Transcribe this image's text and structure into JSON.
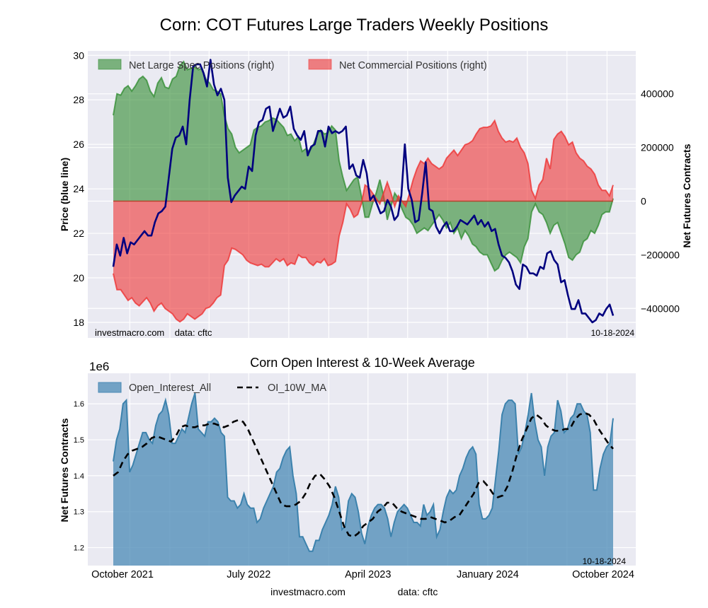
{
  "page": {
    "main_title": "Corn: COT Futures Large Traders Weekly Positions",
    "sub_title": "Corn Open Interest & 10-Week Average",
    "footer_site": "investmacro.com",
    "footer_source": "data: cftc",
    "date_stamp": "10-18-2024"
  },
  "chart_data": [
    {
      "type": "area",
      "title": "Corn: COT Futures Large Traders Weekly Positions",
      "ylabel_left": "Price (blue line)",
      "ylabel_right": "Net Futures Contracts",
      "ylim_left": [
        17.3,
        30.2
      ],
      "ylim_right": [
        -510000,
        560000
      ],
      "yticks_left": [
        "30",
        "28",
        "26",
        "24",
        "22",
        "20",
        "18"
      ],
      "yticks_right": [
        "400000",
        "200000",
        "0",
        "−200000",
        "−400000"
      ],
      "xticks": [
        "October 2021",
        "July 2022",
        "April 2023",
        "January 2024",
        "October 2024"
      ],
      "x_start": "2021-08-24",
      "x_end": "2024-10-15",
      "grid": true,
      "legend_position": "top-left",
      "watermark": "investmacro.com    data: cftc",
      "date_stamp": "10-18-2024",
      "colors": {
        "spec": "#2e8b2e",
        "comm": "#ee3333",
        "price": "#00007f"
      },
      "series": [
        {
          "name": "Net Large Spec Positions (right)",
          "anchor_values": [
            320000,
            400000,
            395000,
            420000,
            430000,
            410000,
            430000,
            455000,
            465000,
            450000,
            410000,
            390000,
            440000,
            460000,
            425000,
            420000,
            455000,
            465000,
            505000,
            520000,
            490000,
            495000,
            500000,
            490000,
            495000,
            455000,
            440000,
            415000,
            410000,
            400000,
            320000,
            270000,
            250000,
            200000,
            180000,
            190000,
            200000,
            210000,
            265000,
            275000,
            280000,
            295000,
            300000,
            310000,
            305000,
            290000,
            275000,
            245000,
            250000,
            225000,
            240000,
            185000,
            195000,
            185000,
            210000,
            245000,
            265000,
            250000,
            255000,
            280000,
            265000,
            150000,
            90000,
            40000,
            60000,
            80000,
            90000,
            20000,
            -60000,
            -60000,
            -10000,
            30000,
            80000,
            20000,
            -70000,
            -20000,
            30000,
            10000,
            -30000,
            -60000,
            -70000,
            -90000,
            -120000,
            -110000,
            -100000,
            -110000,
            -90000,
            -70000,
            -50000,
            -70000,
            -100000,
            -80000,
            -120000,
            -100000,
            -140000,
            -110000,
            -130000,
            -160000,
            -170000,
            -190000,
            -200000,
            -200000,
            -230000,
            -260000,
            -250000,
            -220000,
            -200000,
            -190000,
            -200000,
            -210000,
            -230000,
            -170000,
            -140000,
            -40000,
            -10000,
            -40000,
            -50000,
            -80000,
            -120000,
            -90000,
            -80000,
            -120000,
            -160000,
            -210000,
            -220000,
            -200000,
            -190000,
            -150000,
            -140000,
            -110000,
            -120000,
            -90000,
            -50000,
            -40000,
            -40000,
            10000
          ]
        },
        {
          "name": "Net Commercial Positions (right)",
          "anchor_values": [
            -270000,
            -330000,
            -330000,
            -350000,
            -370000,
            -360000,
            -380000,
            -390000,
            -375000,
            -360000,
            -380000,
            -410000,
            -390000,
            -380000,
            -400000,
            -410000,
            -420000,
            -440000,
            -450000,
            -440000,
            -420000,
            -430000,
            -440000,
            -430000,
            -420000,
            -400000,
            -395000,
            -380000,
            -360000,
            -350000,
            -240000,
            -220000,
            -175000,
            -180000,
            -190000,
            -200000,
            -220000,
            -230000,
            -235000,
            -240000,
            -235000,
            -245000,
            -245000,
            -230000,
            -215000,
            -225000,
            -215000,
            -240000,
            -230000,
            -235000,
            -200000,
            -210000,
            -210000,
            -230000,
            -240000,
            -225000,
            -230000,
            -215000,
            -240000,
            -235000,
            -225000,
            -130000,
            -80000,
            -10000,
            -30000,
            -60000,
            -50000,
            -10000,
            60000,
            50000,
            30000,
            10000,
            -10000,
            30000,
            70000,
            30000,
            -20000,
            20000,
            0,
            -20000,
            30000,
            80000,
            120000,
            150000,
            140000,
            160000,
            140000,
            130000,
            120000,
            130000,
            160000,
            175000,
            190000,
            170000,
            190000,
            210000,
            215000,
            225000,
            250000,
            270000,
            275000,
            275000,
            280000,
            300000,
            260000,
            235000,
            220000,
            225000,
            220000,
            235000,
            200000,
            180000,
            140000,
            40000,
            10000,
            60000,
            80000,
            160000,
            120000,
            230000,
            250000,
            260000,
            240000,
            210000,
            220000,
            180000,
            160000,
            150000,
            130000,
            120000,
            100000,
            60000,
            40000,
            40000,
            20000,
            60000
          ]
        },
        {
          "name": "Price (blue line)",
          "anchor_values": [
            20.5,
            21.5,
            21.0,
            21.8,
            21.1,
            21.6,
            21.5,
            21.7,
            21.9,
            22.1,
            21.9,
            21.9,
            22.5,
            22.9,
            23.0,
            23.2,
            24.5,
            25.8,
            26.3,
            26.4,
            26.8,
            26.0,
            28.0,
            29.5,
            29.6,
            29.6,
            29.2,
            28.6,
            29.8,
            28.7,
            28.2,
            28.5,
            28.0,
            24.5,
            23.4,
            23.7,
            23.9,
            24.1,
            24.0,
            25.0,
            24.8,
            26.4,
            27.0,
            27.1,
            27.6,
            27.7,
            26.6,
            27.1,
            27.6,
            27.2,
            27.3,
            27.7,
            26.7,
            26.4,
            26.2,
            26.6,
            25.5,
            25.9,
            26.0,
            26.6,
            26.6,
            25.9,
            26.8,
            26.5,
            26.6,
            26.5,
            26.6,
            26.8,
            24.9,
            25.1,
            24.6,
            24.5,
            25.3,
            24.7,
            23.5,
            23.7,
            23.3,
            22.9,
            23.0,
            23.5,
            23.2,
            22.6,
            22.8,
            23.7,
            26.0,
            24.0,
            23.5,
            22.5,
            22.6,
            23.8,
            25.2,
            23.1,
            23.0,
            22.3,
            22.0,
            22.3,
            22.5,
            22.1,
            22.1,
            22.3,
            22.6,
            22.5,
            22.4,
            22.6,
            22.8,
            22.4,
            22.6,
            22.3,
            22.5,
            22.1,
            22.2,
            21.5,
            21.0,
            20.9,
            20.7,
            20.3,
            19.7,
            19.5,
            20.6,
            20.5,
            20.2,
            20.2,
            20.1,
            20.5,
            20.4,
            21.1,
            21.2,
            20.8,
            20.6,
            19.8,
            19.9,
            19.2,
            18.6,
            18.6,
            19.0,
            18.4,
            18.4,
            18.2,
            18.0,
            18.1,
            18.4,
            18.3,
            18.6,
            18.8,
            18.3
          ]
        }
      ]
    },
    {
      "type": "area",
      "title": "Corn Open Interest & 10-Week Average",
      "ylabel": "Net Futures Contracts",
      "y_offset_label": "1e6",
      "ylim": [
        1.15,
        1.685
      ],
      "yticks": [
        "1.6",
        "1.5",
        "1.4",
        "1.3",
        "1.2"
      ],
      "xticks": [
        "October 2021",
        "July 2022",
        "April 2023",
        "January 2024",
        "October 2024"
      ],
      "x_start": "2021-08-24",
      "x_end": "2024-10-15",
      "grid": true,
      "legend_position": "top-left",
      "date_stamp": "10-18-2024",
      "colors": {
        "oi": "#4a8ab5",
        "ma": "#000000"
      },
      "series": [
        {
          "name": "Open_Interest_All",
          "anchor_values": [
            1.44,
            1.5,
            1.53,
            1.6,
            1.61,
            1.41,
            1.43,
            1.46,
            1.49,
            1.52,
            1.52,
            1.5,
            1.49,
            1.54,
            1.57,
            1.58,
            1.61,
            1.57,
            1.49,
            1.49,
            1.51,
            1.53,
            1.52,
            1.56,
            1.6,
            1.63,
            1.53,
            1.52,
            1.51,
            1.55,
            1.55,
            1.56,
            1.55,
            1.52,
            1.51,
            1.34,
            1.33,
            1.33,
            1.31,
            1.32,
            1.35,
            1.32,
            1.31,
            1.31,
            1.27,
            1.28,
            1.31,
            1.33,
            1.35,
            1.37,
            1.41,
            1.42,
            1.45,
            1.47,
            1.48,
            1.4,
            1.35,
            1.23,
            1.23,
            1.21,
            1.19,
            1.19,
            1.22,
            1.22,
            1.25,
            1.27,
            1.29,
            1.32,
            1.37,
            1.34,
            1.25,
            1.26,
            1.33,
            1.35,
            1.34,
            1.3,
            1.24,
            1.21,
            1.26,
            1.29,
            1.31,
            1.32,
            1.32,
            1.31,
            1.28,
            1.23,
            1.27,
            1.3,
            1.31,
            1.32,
            1.31,
            1.29,
            1.27,
            1.27,
            1.26,
            1.32,
            1.29,
            1.3,
            1.32,
            1.23,
            1.25,
            1.3,
            1.34,
            1.36,
            1.35,
            1.36,
            1.4,
            1.42,
            1.45,
            1.47,
            1.48,
            1.46,
            1.32,
            1.28,
            1.28,
            1.29,
            1.31,
            1.39,
            1.47,
            1.57,
            1.6,
            1.61,
            1.61,
            1.6,
            1.46,
            1.48,
            1.52,
            1.57,
            1.63,
            1.55,
            1.5,
            1.48,
            1.4,
            1.48,
            1.51,
            1.52,
            1.61,
            1.58,
            1.52,
            1.53,
            1.56,
            1.57,
            1.6,
            1.6,
            1.58,
            1.57,
            1.52,
            1.36,
            1.36,
            1.42,
            1.46,
            1.48,
            1.49,
            1.56
          ]
        },
        {
          "name": "OI_10W_MA",
          "anchor_values": [
            1.4,
            1.41,
            1.44,
            1.46,
            1.47,
            1.475,
            1.48,
            1.49,
            1.505,
            1.51,
            1.505,
            1.5,
            1.495,
            1.51,
            1.535,
            1.54,
            1.535,
            1.535,
            1.54,
            1.54,
            1.545,
            1.545,
            1.54,
            1.535,
            1.54,
            1.55,
            1.555,
            1.55,
            1.53,
            1.5,
            1.47,
            1.44,
            1.41,
            1.38,
            1.35,
            1.32,
            1.315,
            1.315,
            1.32,
            1.33,
            1.35,
            1.38,
            1.4,
            1.405,
            1.39,
            1.37,
            1.34,
            1.3,
            1.26,
            1.235,
            1.23,
            1.24,
            1.26,
            1.27,
            1.28,
            1.3,
            1.31,
            1.325,
            1.325,
            1.31,
            1.3,
            1.295,
            1.29,
            1.285,
            1.28,
            1.28,
            1.285,
            1.28,
            1.275,
            1.27,
            1.275,
            1.285,
            1.29,
            1.31,
            1.33,
            1.35,
            1.38,
            1.385,
            1.37,
            1.35,
            1.34,
            1.345,
            1.37,
            1.41,
            1.46,
            1.5,
            1.53,
            1.56,
            1.57,
            1.56,
            1.54,
            1.53,
            1.525,
            1.525,
            1.53,
            1.53,
            1.555,
            1.57,
            1.575,
            1.57,
            1.555,
            1.53,
            1.51,
            1.49,
            1.475
          ]
        }
      ]
    }
  ]
}
